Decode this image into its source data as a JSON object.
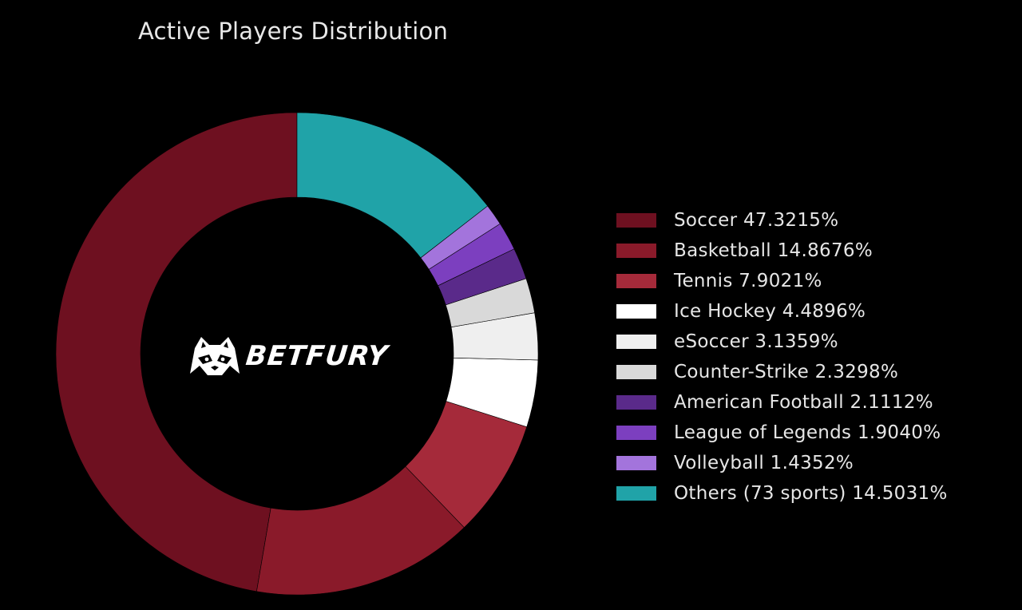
{
  "chart_data": {
    "type": "pie",
    "title": "Active Players Distribution",
    "hole": true,
    "legend_position": "right",
    "slices": [
      {
        "label": "Soccer 47.3215%",
        "value": 47.3215,
        "color": "#6e1020"
      },
      {
        "label": "Basketball 14.8676%",
        "value": 14.8676,
        "color": "#8a1a2a"
      },
      {
        "label": "Tennis 7.9021%",
        "value": 7.9021,
        "color": "#a52a3a"
      },
      {
        "label": "Ice Hockey 4.4896%",
        "value": 4.4896,
        "color": "#ffffff"
      },
      {
        "label": "eSoccer 3.1359%",
        "value": 3.1359,
        "color": "#efefef"
      },
      {
        "label": "Counter-Strike 2.3298%",
        "value": 2.3298,
        "color": "#d9d9d9"
      },
      {
        "label": "American Football 2.1112%",
        "value": 2.1112,
        "color": "#5a2a8a"
      },
      {
        "label": "League of Legends 1.9040%",
        "value": 1.904,
        "color": "#7c3fbf"
      },
      {
        "label": "Volleyball 1.4352%",
        "value": 1.4352,
        "color": "#a374dc"
      },
      {
        "label": "Others (73 sports) 14.5031%",
        "value": 14.5031,
        "color": "#20a3a8"
      }
    ]
  },
  "logo": {
    "text": "BETFURY",
    "icon": "raccoon-mascot-icon"
  }
}
